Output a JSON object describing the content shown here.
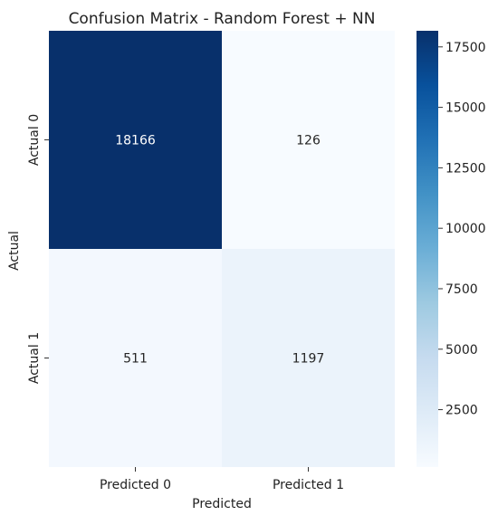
{
  "chart_data": {
    "type": "heatmap",
    "title": "Confusion Matrix - Random Forest + NN",
    "xlabel": "Predicted",
    "ylabel": "Actual",
    "x_categories": [
      "Predicted 0",
      "Predicted 1"
    ],
    "y_categories": [
      "Actual 0",
      "Actual 1"
    ],
    "values": [
      [
        18166,
        126
      ],
      [
        511,
        1197
      ]
    ],
    "colormap": "Blues",
    "color_range": [
      126,
      18166
    ],
    "colorbar_ticks": [
      2500,
      5000,
      7500,
      10000,
      12500,
      15000,
      17500
    ]
  }
}
